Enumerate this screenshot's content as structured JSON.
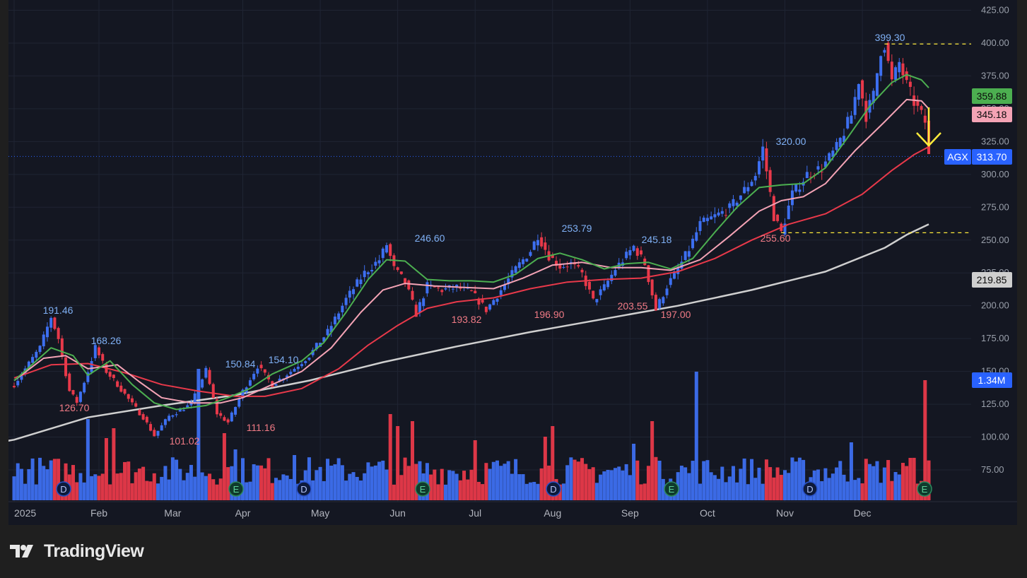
{
  "app": {
    "brand": "TradingView"
  },
  "colors": {
    "up": "#3d6ff0",
    "down": "#e8394a",
    "ema_fast": "#4caf50",
    "ema_mid": "#f4a3b5",
    "ema_slow": "#e8394a",
    "sma_long": "#cfcfcf",
    "current_price": "#2962ff",
    "annotation": "#ffeb3b"
  },
  "price_axis": {
    "ticks": [
      "425.00",
      "400.00",
      "375.00",
      "350.00",
      "325.00",
      "300.00",
      "275.00",
      "250.00",
      "225.00",
      "200.00",
      "175.00",
      "150.00",
      "125.00",
      "100.00",
      "75.00"
    ]
  },
  "time_axis": {
    "labels": [
      "2025",
      "Feb",
      "Mar",
      "Apr",
      "May",
      "Jun",
      "Jul",
      "Aug",
      "Sep",
      "Oct",
      "Nov",
      "Dec"
    ]
  },
  "tags": {
    "symbol": "AGX",
    "last_price": "313.70",
    "ma_fast": "359.88",
    "ma_mid": "345.18",
    "ma_long": "219.85",
    "volume": "1.34M"
  },
  "event_markers": [
    "D",
    "E",
    "D",
    "E",
    "D",
    "E",
    "D",
    "E"
  ],
  "chart_data": {
    "type": "candlestick",
    "ylim": [
      50,
      425
    ],
    "pivot_labels": {
      "highs": [
        "191.46",
        "168.26",
        "150.84",
        "154.10",
        "246.60",
        "253.79",
        "245.18",
        "320.00",
        "399.30"
      ],
      "lows": [
        "126.70",
        "101.02",
        "111.16",
        "193.82",
        "196.90",
        "203.55",
        "197.00",
        "255.60"
      ]
    },
    "pivot_values": {
      "highs": [
        191.46,
        168.26,
        150.84,
        154.1,
        246.6,
        253.79,
        245.18,
        320.0,
        399.3
      ],
      "lows": [
        126.7,
        101.02,
        111.16,
        193.82,
        196.9,
        203.55,
        197.0,
        255.6
      ]
    },
    "path": [
      [
        0,
        140
      ],
      [
        3,
        152
      ],
      [
        7,
        168
      ],
      [
        10,
        191.46
      ],
      [
        12,
        175
      ],
      [
        15,
        135
      ],
      [
        17,
        126.7
      ],
      [
        20,
        150
      ],
      [
        22,
        168.26
      ],
      [
        25,
        150
      ],
      [
        28,
        140
      ],
      [
        32,
        125
      ],
      [
        35,
        115
      ],
      [
        38,
        101.02
      ],
      [
        42,
        116
      ],
      [
        48,
        125
      ],
      [
        52,
        150.84
      ],
      [
        55,
        118
      ],
      [
        58,
        111.16
      ],
      [
        62,
        135
      ],
      [
        66,
        154.1
      ],
      [
        70,
        140
      ],
      [
        75,
        150
      ],
      [
        80,
        162
      ],
      [
        85,
        180
      ],
      [
        90,
        205
      ],
      [
        95,
        225
      ],
      [
        99,
        235
      ],
      [
        101,
        246.6
      ],
      [
        103,
        228
      ],
      [
        106,
        218
      ],
      [
        109,
        193.82
      ],
      [
        112,
        215
      ],
      [
        116,
        212
      ],
      [
        120,
        214
      ],
      [
        124,
        210
      ],
      [
        128,
        196.9
      ],
      [
        132,
        212
      ],
      [
        136,
        228
      ],
      [
        140,
        242
      ],
      [
        142,
        253.79
      ],
      [
        145,
        238
      ],
      [
        148,
        230
      ],
      [
        151,
        232
      ],
      [
        154,
        224
      ],
      [
        157,
        203.55
      ],
      [
        160,
        214
      ],
      [
        163,
        228
      ],
      [
        166,
        238
      ],
      [
        168,
        245.18
      ],
      [
        171,
        232
      ],
      [
        174,
        197
      ],
      [
        177,
        215
      ],
      [
        180,
        228
      ],
      [
        183,
        243
      ],
      [
        186,
        262
      ],
      [
        190,
        268
      ],
      [
        194,
        274
      ],
      [
        198,
        288
      ],
      [
        201,
        300
      ],
      [
        203,
        320
      ],
      [
        206,
        268
      ],
      [
        208,
        255.6
      ],
      [
        211,
        285
      ],
      [
        215,
        300
      ],
      [
        219,
        305
      ],
      [
        223,
        320
      ],
      [
        227,
        345
      ],
      [
        229,
        372
      ],
      [
        231,
        345
      ],
      [
        233,
        360
      ],
      [
        235,
        395
      ],
      [
        236,
        399.3
      ],
      [
        238,
        370
      ],
      [
        240,
        385
      ],
      [
        242,
        368
      ],
      [
        244,
        355
      ],
      [
        246,
        345
      ],
      [
        247,
        340
      ],
      [
        248,
        313.7
      ]
    ],
    "ema_fast": [
      [
        0,
        143
      ],
      [
        10,
        168
      ],
      [
        16,
        162
      ],
      [
        20,
        147
      ],
      [
        26,
        158
      ],
      [
        32,
        140
      ],
      [
        38,
        126
      ],
      [
        44,
        121
      ],
      [
        52,
        124
      ],
      [
        58,
        130
      ],
      [
        64,
        137
      ],
      [
        70,
        148
      ],
      [
        78,
        158
      ],
      [
        84,
        172
      ],
      [
        90,
        195
      ],
      [
        96,
        220
      ],
      [
        101,
        235
      ],
      [
        106,
        234
      ],
      [
        112,
        220
      ],
      [
        118,
        219
      ],
      [
        124,
        219
      ],
      [
        130,
        218
      ],
      [
        136,
        224
      ],
      [
        142,
        236
      ],
      [
        148,
        240
      ],
      [
        154,
        235
      ],
      [
        160,
        228
      ],
      [
        166,
        232
      ],
      [
        172,
        233
      ],
      [
        178,
        228
      ],
      [
        184,
        236
      ],
      [
        190,
        256
      ],
      [
        196,
        275
      ],
      [
        202,
        290
      ],
      [
        208,
        292
      ],
      [
        214,
        293
      ],
      [
        220,
        305
      ],
      [
        226,
        328
      ],
      [
        232,
        352
      ],
      [
        238,
        370
      ],
      [
        242,
        376
      ],
      [
        246,
        372
      ],
      [
        248,
        366
      ]
    ],
    "ema_mid": [
      [
        0,
        143
      ],
      [
        8,
        160
      ],
      [
        14,
        162
      ],
      [
        20,
        152
      ],
      [
        28,
        155
      ],
      [
        34,
        142
      ],
      [
        40,
        130
      ],
      [
        48,
        126
      ],
      [
        56,
        126
      ],
      [
        62,
        130
      ],
      [
        70,
        140
      ],
      [
        78,
        150
      ],
      [
        86,
        168
      ],
      [
        94,
        195
      ],
      [
        100,
        212
      ],
      [
        106,
        217
      ],
      [
        114,
        215
      ],
      [
        122,
        214
      ],
      [
        130,
        213
      ],
      [
        138,
        221
      ],
      [
        146,
        231
      ],
      [
        154,
        233
      ],
      [
        162,
        229
      ],
      [
        170,
        229
      ],
      [
        178,
        227
      ],
      [
        186,
        235
      ],
      [
        194,
        253
      ],
      [
        202,
        272
      ],
      [
        208,
        280
      ],
      [
        214,
        283
      ],
      [
        220,
        293
      ],
      [
        228,
        318
      ],
      [
        236,
        340
      ],
      [
        242,
        357
      ],
      [
        246,
        356
      ],
      [
        248,
        350
      ]
    ],
    "ema_slow": [
      [
        0,
        145
      ],
      [
        10,
        155
      ],
      [
        20,
        156
      ],
      [
        30,
        149
      ],
      [
        40,
        140
      ],
      [
        50,
        135
      ],
      [
        60,
        131
      ],
      [
        68,
        131
      ],
      [
        78,
        137
      ],
      [
        88,
        152
      ],
      [
        96,
        170
      ],
      [
        104,
        185
      ],
      [
        112,
        198
      ],
      [
        120,
        203
      ],
      [
        130,
        206
      ],
      [
        140,
        213
      ],
      [
        150,
        218
      ],
      [
        160,
        220
      ],
      [
        170,
        221
      ],
      [
        180,
        226
      ],
      [
        190,
        236
      ],
      [
        200,
        250
      ],
      [
        210,
        262
      ],
      [
        220,
        270
      ],
      [
        230,
        285
      ],
      [
        238,
        303
      ],
      [
        244,
        315
      ],
      [
        248,
        321
      ]
    ],
    "sma_long": [
      [
        0,
        98
      ],
      [
        20,
        115
      ],
      [
        40,
        124
      ],
      [
        60,
        132
      ],
      [
        80,
        143
      ],
      [
        100,
        157
      ],
      [
        120,
        169
      ],
      [
        140,
        180
      ],
      [
        160,
        190
      ],
      [
        180,
        200
      ],
      [
        200,
        212
      ],
      [
        220,
        226
      ],
      [
        236,
        244
      ],
      [
        242,
        254
      ],
      [
        248,
        262
      ]
    ],
    "volume_scale_max": 1.34,
    "volume_note": "bars in lower pane, last bar 1.34M"
  }
}
